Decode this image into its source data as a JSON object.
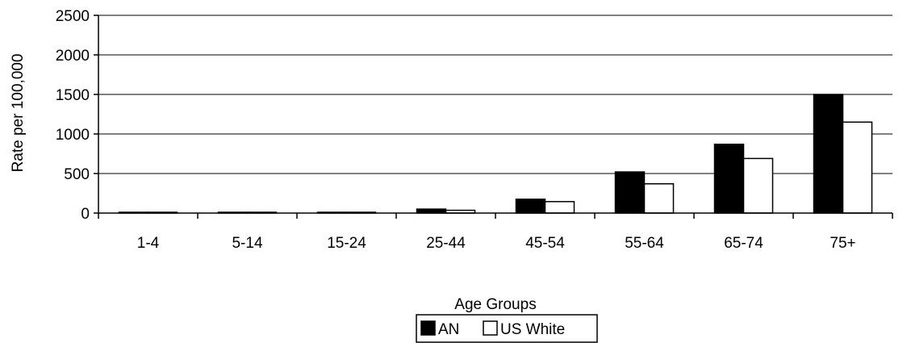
{
  "chart_data": {
    "type": "bar",
    "title": "",
    "xlabel": "Age Groups",
    "ylabel": "Rate per 100,000",
    "ylim": [
      0,
      2500
    ],
    "yticks": [
      0,
      500,
      1000,
      1500,
      2000,
      2500
    ],
    "grid": "horizontal",
    "legend_position": "bottom",
    "categories": [
      "1-4",
      "5-14",
      "15-24",
      "25-44",
      "45-54",
      "55-64",
      "65-74",
      "75+"
    ],
    "series": [
      {
        "name": "AN",
        "values": [
          5,
          4,
          8,
          50,
          175,
          520,
          870,
          1500
        ],
        "color": "#000000"
      },
      {
        "name": "US White",
        "values": [
          3,
          3,
          8,
          35,
          145,
          370,
          690,
          1150
        ],
        "color": "#ffffff"
      }
    ]
  }
}
